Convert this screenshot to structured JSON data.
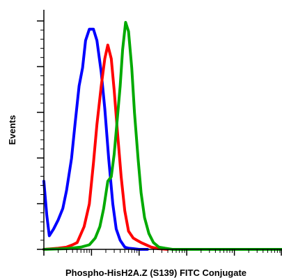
{
  "chart_data": {
    "type": "line",
    "title": "",
    "xlabel": "Phospho-HisH2A.Z (S139) FITC Conjugate",
    "ylabel": "Events",
    "x_scale": "log",
    "xlim": [
      1,
      100000
    ],
    "ylim": [
      0,
      1
    ],
    "grid": false,
    "legend": "none",
    "series": [
      {
        "color": "#0000ff",
        "x": [
          1,
          1.15,
          1.3,
          1.6,
          2,
          2.5,
          3,
          3.8,
          4.5,
          5.5,
          6.5,
          7.5,
          9,
          11,
          13,
          16,
          19,
          23,
          28,
          33,
          40,
          50,
          60,
          75,
          100,
          150
        ],
        "y": [
          0.3,
          0.15,
          0.06,
          0.09,
          0.13,
          0.18,
          0.26,
          0.4,
          0.55,
          0.72,
          0.8,
          0.92,
          0.97,
          0.97,
          0.92,
          0.78,
          0.62,
          0.4,
          0.2,
          0.09,
          0.04,
          0.01,
          0.005,
          0.003,
          0.0,
          0.0
        ]
      },
      {
        "color": "#ff0000",
        "x": [
          1,
          2,
          3,
          4,
          5,
          7,
          9,
          11,
          13,
          16,
          19,
          22,
          26,
          30,
          35,
          42,
          50,
          60,
          75,
          90,
          110,
          140,
          180,
          250,
          400
        ],
        "y": [
          0.0,
          0.005,
          0.01,
          0.02,
          0.03,
          0.1,
          0.2,
          0.38,
          0.55,
          0.72,
          0.84,
          0.9,
          0.84,
          0.7,
          0.52,
          0.32,
          0.17,
          0.08,
          0.05,
          0.04,
          0.03,
          0.02,
          0.01,
          0.003,
          0.0
        ]
      },
      {
        "color": "#00aa00",
        "x": [
          1,
          3,
          6,
          9,
          12,
          15,
          18,
          22,
          26,
          30,
          35,
          40,
          45,
          52,
          60,
          70,
          80,
          95,
          110,
          130,
          160,
          200,
          260,
          350,
          500,
          1000,
          100000
        ],
        "y": [
          0.0,
          0.003,
          0.01,
          0.02,
          0.05,
          0.1,
          0.18,
          0.3,
          0.32,
          0.42,
          0.58,
          0.72,
          0.88,
          1.0,
          0.96,
          0.8,
          0.6,
          0.4,
          0.25,
          0.14,
          0.07,
          0.03,
          0.01,
          0.005,
          0.0,
          0.0,
          0.0
        ]
      }
    ]
  }
}
